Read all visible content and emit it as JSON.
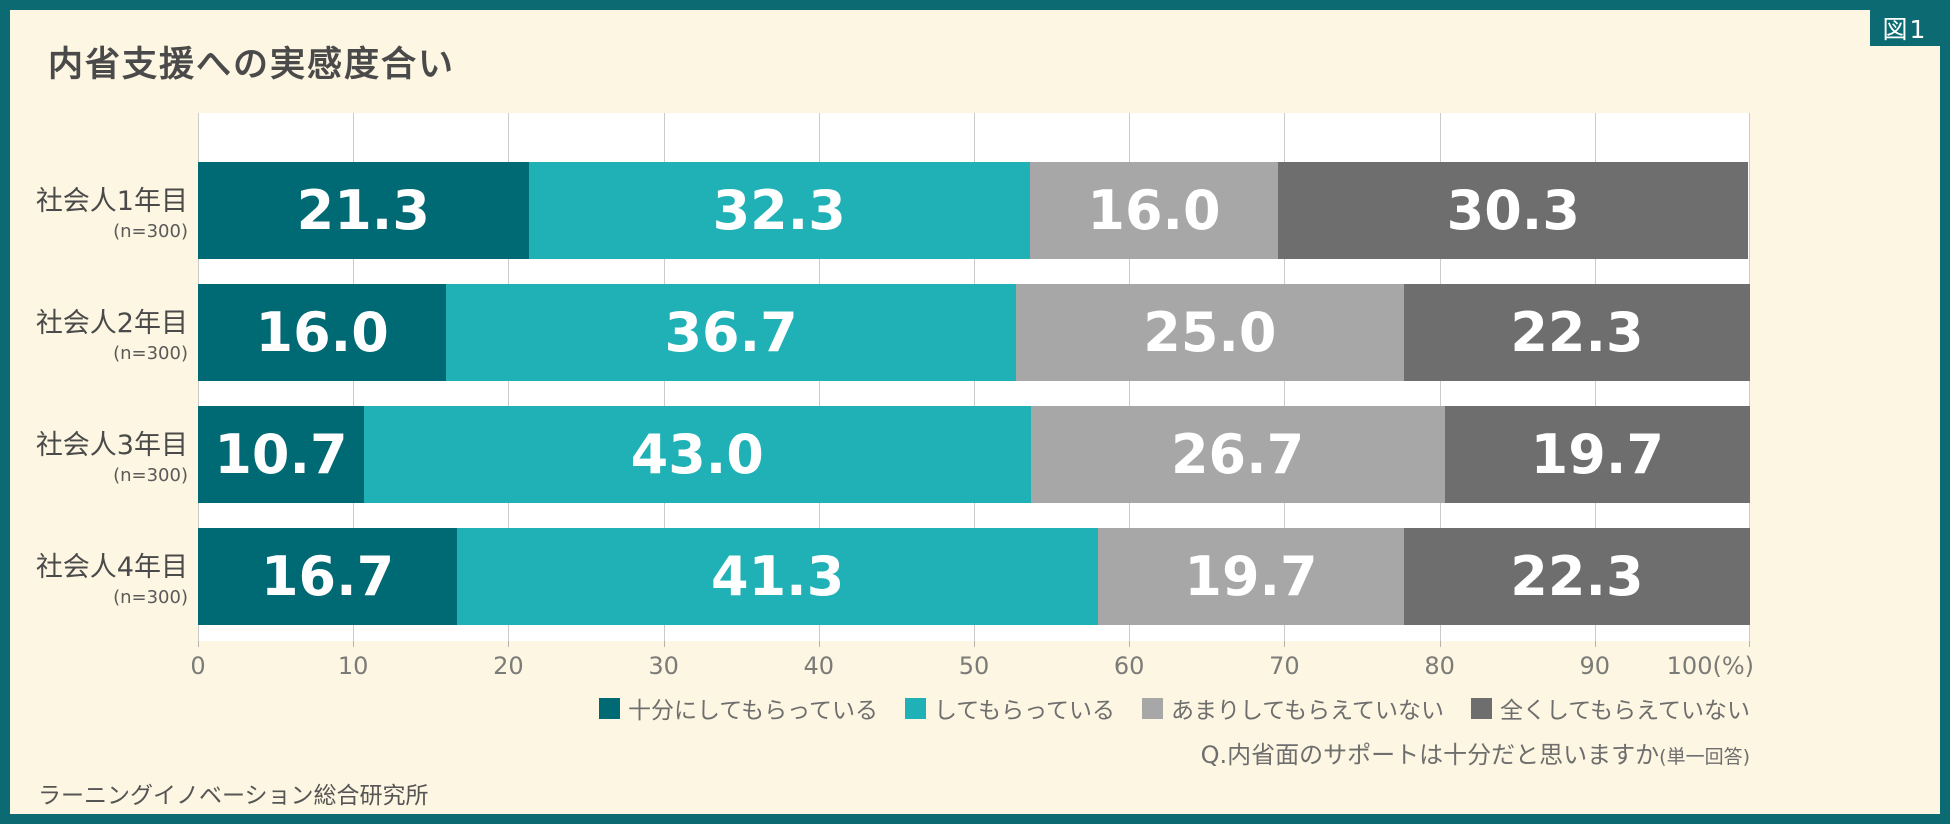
{
  "figure_label": "図1",
  "title": "内省支援への実感度合い",
  "source": "ラーニングイノベーション総合研究所",
  "question": {
    "main": "Q.内省面のサポートは十分だと思いますか",
    "note": "(単一回答)"
  },
  "colors": {
    "frame_border": "#0c6a73",
    "background": "#fdf6e2",
    "plot_background": "#ffffff",
    "gridline": "#cbcbcb",
    "title_text": "#4a4a4a",
    "axis_text": "#7b7b78",
    "legend_text": "#6e6e6e"
  },
  "chart_data": {
    "type": "bar",
    "stacked": true,
    "orientation": "horizontal",
    "title": "内省支援への実感度合い",
    "categories": [
      "社会人1年目",
      "社会人2年目",
      "社会人3年目",
      "社会人4年目"
    ],
    "category_sublabels": [
      "(n=300)",
      "(n=300)",
      "(n=300)",
      "(n=300)"
    ],
    "series": [
      {
        "name": "十分にしてもらっている",
        "color": "#006a74",
        "values": [
          21.3,
          16.0,
          10.7,
          16.7
        ]
      },
      {
        "name": "してもらっている",
        "color": "#1fb1b6",
        "values": [
          32.3,
          36.7,
          43.0,
          41.3
        ]
      },
      {
        "name": "あまりしてもらえていない",
        "color": "#a7a7a7",
        "values": [
          16.0,
          25.0,
          26.7,
          19.7
        ]
      },
      {
        "name": "全くしてもらえていない",
        "color": "#6e6e6e",
        "values": [
          30.3,
          22.3,
          19.7,
          22.3
        ]
      }
    ],
    "x_axis": {
      "min": 0,
      "max": 100,
      "tick_step": 10,
      "tick_labels": [
        "0",
        "10",
        "20",
        "30",
        "40",
        "50",
        "60",
        "70",
        "80",
        "90",
        "100(%)"
      ]
    },
    "grid": true,
    "legend_position": "bottom-right",
    "value_format": "one-decimal"
  }
}
